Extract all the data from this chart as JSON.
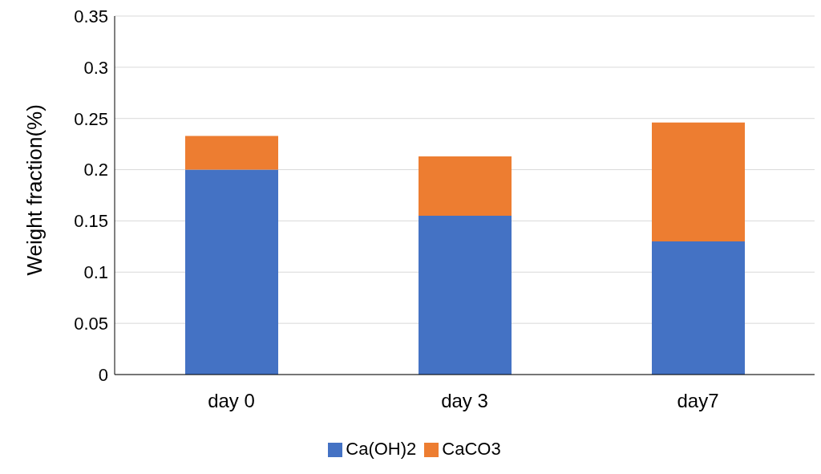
{
  "chart_data": {
    "type": "bar",
    "stacked": true,
    "ylabel": "Weight fraction(%)",
    "categories": [
      "day 0",
      "day 3",
      "day7"
    ],
    "series": [
      {
        "name": "Ca(OH)2",
        "color": "#4472c4",
        "values": [
          0.2,
          0.155,
          0.13
        ]
      },
      {
        "name": "CaCO3",
        "color": "#ed7d31",
        "values": [
          0.033,
          0.058,
          0.116
        ]
      }
    ],
    "ylim": [
      0,
      0.35
    ],
    "yticks": [
      0,
      0.05,
      0.1,
      0.15,
      0.2,
      0.25,
      0.3,
      0.35
    ],
    "grid": "y",
    "legend": "bottom"
  }
}
